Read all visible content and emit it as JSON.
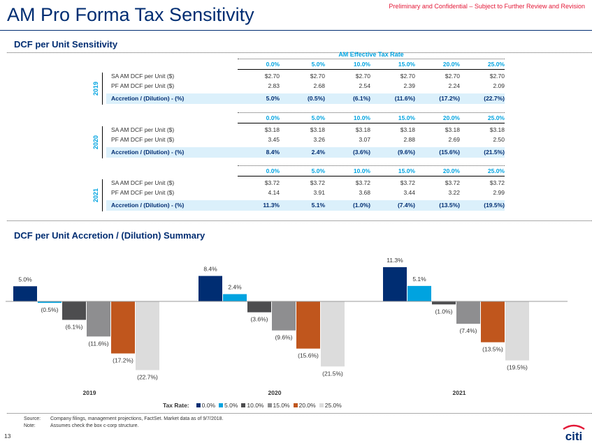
{
  "page_title": "AM Pro Forma Tax Sensitivity",
  "confidential": "Preliminary and Confidential – Subject to Further Review and Revision",
  "section1_title": "DCF per Unit Sensitivity",
  "tax_rate_header": "AM Effective Tax Rate",
  "tax_rates": [
    "0.0%",
    "5.0%",
    "10.0%",
    "15.0%",
    "20.0%",
    "25.0%"
  ],
  "row_labels": {
    "sa": "SA AM DCF per Unit ($)",
    "pf": "PF AM DCF per Unit ($)",
    "acc": "Accretion / (Dilution) - (%)"
  },
  "blocks": [
    {
      "year": "2019",
      "sa": [
        "$2.70",
        "$2.70",
        "$2.70",
        "$2.70",
        "$2.70",
        "$2.70"
      ],
      "pf": [
        "2.83",
        "2.68",
        "2.54",
        "2.39",
        "2.24",
        "2.09"
      ],
      "acc": [
        "5.0%",
        "(0.5%)",
        "(6.1%)",
        "(11.6%)",
        "(17.2%)",
        "(22.7%)"
      ]
    },
    {
      "year": "2020",
      "sa": [
        "$3.18",
        "$3.18",
        "$3.18",
        "$3.18",
        "$3.18",
        "$3.18"
      ],
      "pf": [
        "3.45",
        "3.26",
        "3.07",
        "2.88",
        "2.69",
        "2.50"
      ],
      "acc": [
        "8.4%",
        "2.4%",
        "(3.6%)",
        "(9.6%)",
        "(15.6%)",
        "(21.5%)"
      ]
    },
    {
      "year": "2021",
      "sa": [
        "$3.72",
        "$3.72",
        "$3.72",
        "$3.72",
        "$3.72",
        "$3.72"
      ],
      "pf": [
        "4.14",
        "3.91",
        "3.68",
        "3.44",
        "3.22",
        "2.99"
      ],
      "acc": [
        "11.3%",
        "5.1%",
        "(1.0%)",
        "(7.4%)",
        "(13.5%)",
        "(19.5%)"
      ]
    }
  ],
  "section2_title": "DCF per Unit Accretion / (Dilution) Summary",
  "legend_title": "Tax Rate:",
  "chart_data": {
    "type": "bar",
    "title": "DCF per Unit Accretion / (Dilution) Summary",
    "categories": [
      "2019",
      "2020",
      "2021"
    ],
    "series": [
      {
        "name": "0.0%",
        "color": "#002d72",
        "values": [
          5.0,
          8.4,
          11.3
        ],
        "labels": [
          "5.0%",
          "8.4%",
          "11.3%"
        ]
      },
      {
        "name": "5.0%",
        "color": "#00a3e0",
        "values": [
          -0.5,
          2.4,
          5.1
        ],
        "labels": [
          "(0.5%)",
          "2.4%",
          "5.1%"
        ]
      },
      {
        "name": "10.0%",
        "color": "#4d4d4f",
        "values": [
          -6.1,
          -3.6,
          -1.0
        ],
        "labels": [
          "(6.1%)",
          "(3.6%)",
          "(1.0%)"
        ]
      },
      {
        "name": "15.0%",
        "color": "#8e8e90",
        "values": [
          -11.6,
          -9.6,
          -7.4
        ],
        "labels": [
          "(11.6%)",
          "(9.6%)",
          "(7.4%)"
        ]
      },
      {
        "name": "20.0%",
        "color": "#c0561d",
        "values": [
          -17.2,
          -15.6,
          -13.5
        ],
        "labels": [
          "(17.2%)",
          "(15.6%)",
          "(13.5%)"
        ]
      },
      {
        "name": "25.0%",
        "color": "#dcdcdc",
        "values": [
          -22.7,
          -21.5,
          -19.5
        ],
        "labels": [
          "(22.7%)",
          "(21.5%)",
          "(19.5%)"
        ]
      }
    ],
    "xlabel": "",
    "ylabel": "",
    "ylim": [
      -23,
      12
    ],
    "legend": "bottom"
  },
  "footer": {
    "source_label": "Source:",
    "source_text": "Company filings, management projections, FactSet. Market data as of 9/7/2018.",
    "note_label": "Note:",
    "note_text": "Assumes check the box c-corp structure."
  },
  "page_number": "13",
  "logo_text": "citi"
}
